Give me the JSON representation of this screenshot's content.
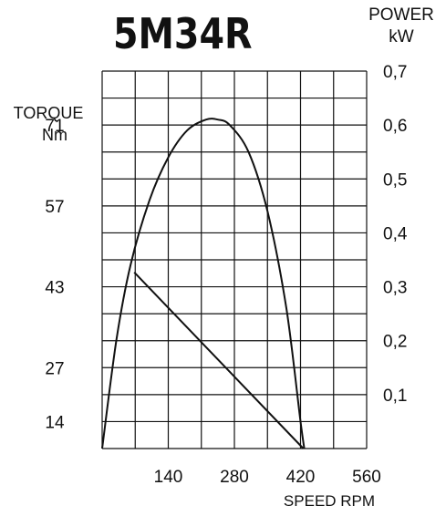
{
  "chart_data": {
    "type": "line",
    "title": "5M34R",
    "xlabel": "SPEED RPM",
    "ylabel_left": [
      "TORQUE",
      "Nm"
    ],
    "ylabel_right": [
      "POWER",
      "kW"
    ],
    "x_ticks": [
      "140",
      "280",
      "420",
      "560"
    ],
    "xlim": [
      0,
      560
    ],
    "left_ticks": [
      "14",
      "27",
      "43",
      "57",
      "71"
    ],
    "right_ticks": [
      "0,1",
      "0,2",
      "0,3",
      "0,4",
      "0,5",
      "0,6",
      "0,7"
    ],
    "ylim_right": [
      0,
      0.7
    ],
    "grid": true,
    "series": [
      {
        "kind": "torque",
        "axis": "left",
        "x": [
          68,
          426
        ],
        "y": [
          45.5,
          0
        ]
      },
      {
        "kind": "power",
        "axis": "right",
        "x": [
          0,
          30,
          60,
          100,
          140,
          180,
          220,
          245,
          270,
          310,
          350,
          390,
          420,
          428
        ],
        "y": [
          0,
          0.2,
          0.34,
          0.46,
          0.54,
          0.59,
          0.61,
          0.61,
          0.6,
          0.55,
          0.44,
          0.26,
          0.05,
          0
        ]
      }
    ]
  }
}
